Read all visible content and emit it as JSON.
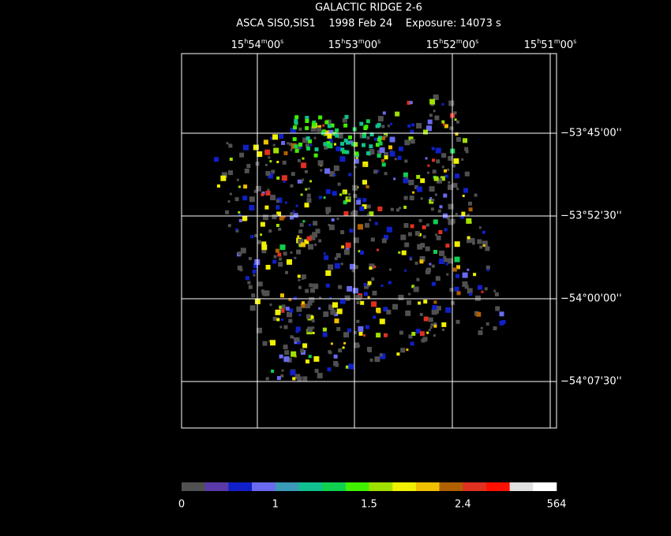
{
  "header": {
    "title": "GALACTIC RIDGE 2-6",
    "subtitle": "ASCA SIS0,SIS1    1998 Feb 24    Exposure: 14073 s"
  },
  "ra_labels": [
    [
      "15",
      "h",
      "54",
      "m",
      "00",
      "s"
    ],
    [
      "15",
      "h",
      "53",
      "m",
      "00",
      "s"
    ],
    [
      "15",
      "h",
      "52",
      "m",
      "00",
      "s"
    ],
    [
      "15",
      "h",
      "51",
      "m",
      "00",
      "s"
    ]
  ],
  "dec_labels": [
    "−53°45'00''",
    "−53°52'30''",
    "−54°00'00''",
    "−54°07'30''"
  ],
  "colorbar": {
    "colors": [
      "#505050",
      "#5a3aa8",
      "#1020c8",
      "#6a6aef",
      "#3a9ab8",
      "#10c090",
      "#10d050",
      "#40f000",
      "#a0e000",
      "#f0f000",
      "#f0c000",
      "#b06000",
      "#e03020",
      "#ff1000",
      "#e0e0e0",
      "#ffffff"
    ],
    "labels": [
      "0",
      "1",
      "1.5",
      "2.4",
      "564"
    ]
  }
}
